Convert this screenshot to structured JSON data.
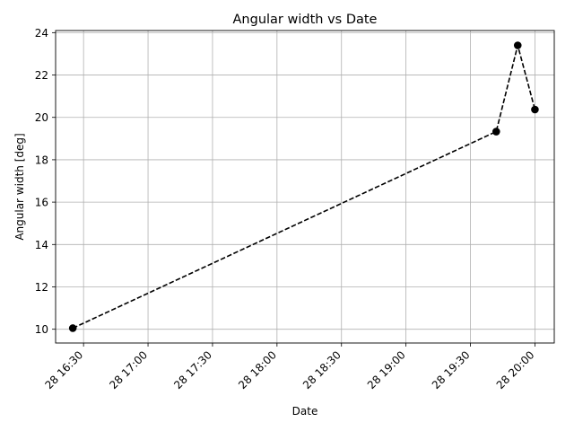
{
  "chart_data": {
    "type": "line",
    "title": "Angular width vs Date",
    "xlabel": "Date",
    "ylabel": "Angular width [deg]",
    "x_ticks": [
      "28 16:30",
      "28 17:00",
      "28 17:30",
      "28 18:00",
      "28 18:30",
      "28 19:00",
      "28 19:30",
      "28 20:00"
    ],
    "y_ticks": [
      "10",
      "12",
      "14",
      "16",
      "18",
      "20",
      "22",
      "24"
    ],
    "xlim": [
      "28 16:17",
      "28 20:09"
    ],
    "ylim": [
      9.35,
      24.1
    ],
    "grid": true,
    "series": [
      {
        "x": [
          "28 16:25",
          "28 19:42",
          "28 19:52",
          "28 20:00"
        ],
        "y": [
          10.05,
          19.33,
          23.4,
          20.37
        ],
        "color": "#000000",
        "line_style": "dashed",
        "marker": "circle"
      }
    ]
  }
}
